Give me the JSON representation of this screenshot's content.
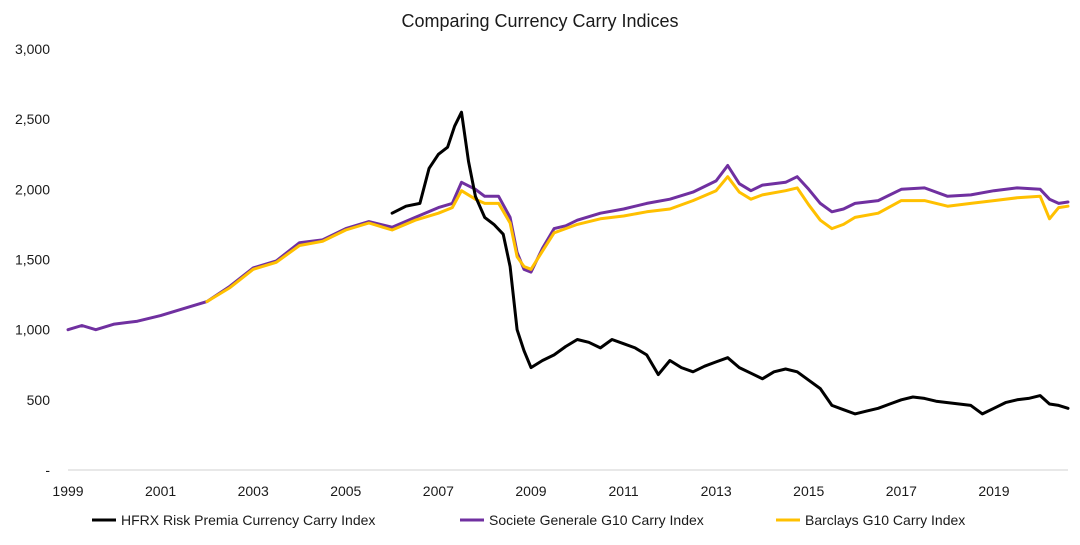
{
  "chart_data": {
    "type": "line",
    "title": "Comparing Currency Carry Indices",
    "xlabel": "",
    "ylabel": "",
    "x_ticks": [
      "1999",
      "2001",
      "2003",
      "2005",
      "2007",
      "2009",
      "2011",
      "2013",
      "2015",
      "2017",
      "2019"
    ],
    "y_ticks": [
      "-",
      "500",
      "1,000",
      "1,500",
      "2,000",
      "2,500",
      "3,000"
    ],
    "xlim": [
      1999.0,
      2020.6
    ],
    "ylim": [
      0,
      3000
    ],
    "grid": false,
    "legend_position": "bottom",
    "series": [
      {
        "name": "HFRX Risk Premia Currency Carry Index",
        "color": "#000000",
        "x": [
          2006.0,
          2006.3,
          2006.6,
          2006.8,
          2007.0,
          2007.2,
          2007.35,
          2007.5,
          2007.65,
          2007.8,
          2008.0,
          2008.2,
          2008.4,
          2008.55,
          2008.7,
          2008.85,
          2009.0,
          2009.25,
          2009.5,
          2009.75,
          2010.0,
          2010.25,
          2010.5,
          2010.75,
          2011.0,
          2011.25,
          2011.5,
          2011.75,
          2012.0,
          2012.25,
          2012.5,
          2012.75,
          2013.0,
          2013.25,
          2013.5,
          2013.75,
          2014.0,
          2014.25,
          2014.5,
          2014.75,
          2015.0,
          2015.25,
          2015.5,
          2015.75,
          2016.0,
          2016.25,
          2016.5,
          2016.75,
          2017.0,
          2017.25,
          2017.5,
          2017.75,
          2018.0,
          2018.25,
          2018.5,
          2018.75,
          2019.0,
          2019.25,
          2019.5,
          2019.75,
          2020.0,
          2020.2,
          2020.4,
          2020.6
        ],
        "y": [
          1830,
          1880,
          1900,
          2150,
          2250,
          2300,
          2450,
          2550,
          2200,
          1950,
          1800,
          1750,
          1680,
          1450,
          1000,
          850,
          730,
          780,
          820,
          880,
          930,
          910,
          870,
          930,
          900,
          870,
          820,
          680,
          780,
          730,
          700,
          740,
          770,
          800,
          730,
          690,
          650,
          700,
          720,
          700,
          640,
          580,
          460,
          430,
          400,
          420,
          440,
          470,
          500,
          520,
          510,
          490,
          480,
          470,
          460,
          400,
          440,
          480,
          500,
          510,
          530,
          470,
          460,
          440
        ]
      },
      {
        "name": "Societe Generale G10 Carry Index",
        "color": "#7030A0",
        "x": [
          1999.0,
          1999.3,
          1999.6,
          2000.0,
          2000.5,
          2001.0,
          2001.5,
          2002.0,
          2002.5,
          2003.0,
          2003.5,
          2004.0,
          2004.5,
          2005.0,
          2005.5,
          2006.0,
          2006.5,
          2007.0,
          2007.3,
          2007.5,
          2007.8,
          2008.0,
          2008.3,
          2008.55,
          2008.7,
          2008.85,
          2009.0,
          2009.25,
          2009.5,
          2009.75,
          2010.0,
          2010.5,
          2011.0,
          2011.5,
          2012.0,
          2012.5,
          2013.0,
          2013.25,
          2013.5,
          2013.75,
          2014.0,
          2014.5,
          2014.75,
          2015.0,
          2015.25,
          2015.5,
          2015.75,
          2016.0,
          2016.5,
          2017.0,
          2017.5,
          2018.0,
          2018.5,
          2019.0,
          2019.5,
          2020.0,
          2020.2,
          2020.4,
          2020.6
        ],
        "y": [
          1000,
          1030,
          1000,
          1040,
          1060,
          1100,
          1150,
          1200,
          1310,
          1440,
          1490,
          1620,
          1640,
          1720,
          1770,
          1730,
          1800,
          1870,
          1900,
          2050,
          2000,
          1950,
          1950,
          1800,
          1550,
          1430,
          1410,
          1580,
          1720,
          1740,
          1780,
          1830,
          1860,
          1900,
          1930,
          1980,
          2060,
          2170,
          2040,
          1990,
          2030,
          2050,
          2090,
          2000,
          1900,
          1840,
          1860,
          1900,
          1920,
          2000,
          2010,
          1950,
          1960,
          1990,
          2010,
          2000,
          1930,
          1900,
          1910
        ]
      },
      {
        "name": "Barclays G10 Carry Index",
        "color": "#FFC000",
        "x": [
          2002.0,
          2002.5,
          2003.0,
          2003.5,
          2004.0,
          2004.5,
          2005.0,
          2005.5,
          2006.0,
          2006.5,
          2007.0,
          2007.3,
          2007.5,
          2007.8,
          2008.0,
          2008.3,
          2008.55,
          2008.7,
          2008.85,
          2009.0,
          2009.25,
          2009.5,
          2009.75,
          2010.0,
          2010.5,
          2011.0,
          2011.5,
          2012.0,
          2012.5,
          2013.0,
          2013.25,
          2013.5,
          2013.75,
          2014.0,
          2014.5,
          2014.75,
          2015.0,
          2015.25,
          2015.5,
          2015.75,
          2016.0,
          2016.5,
          2017.0,
          2017.5,
          2018.0,
          2018.5,
          2019.0,
          2019.5,
          2020.0,
          2020.2,
          2020.4,
          2020.6
        ],
        "y": [
          1200,
          1300,
          1430,
          1480,
          1600,
          1630,
          1710,
          1760,
          1710,
          1780,
          1830,
          1870,
          1990,
          1930,
          1900,
          1900,
          1760,
          1520,
          1450,
          1430,
          1560,
          1690,
          1720,
          1750,
          1790,
          1810,
          1840,
          1860,
          1920,
          1990,
          2090,
          1980,
          1930,
          1960,
          1990,
          2010,
          1890,
          1780,
          1720,
          1750,
          1800,
          1830,
          1920,
          1920,
          1880,
          1900,
          1920,
          1940,
          1950,
          1790,
          1870,
          1880
        ]
      }
    ]
  }
}
